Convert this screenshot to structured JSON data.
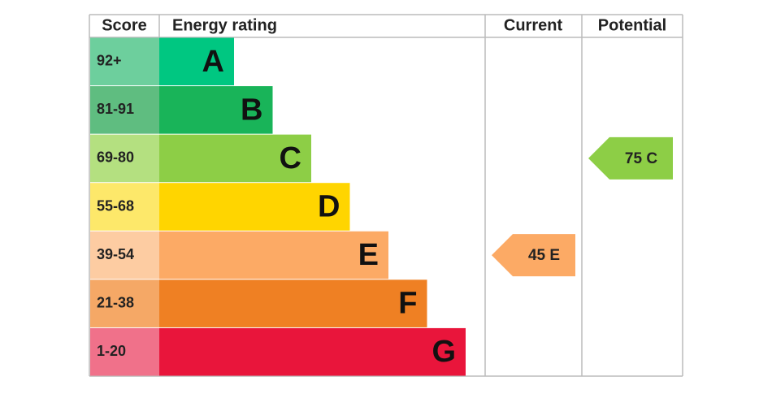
{
  "header": {
    "score": "Score",
    "rating": "Energy rating",
    "current": "Current",
    "potential": "Potential"
  },
  "rows": [
    {
      "score": "92+",
      "letter": "A",
      "color": "#00c781",
      "score_color": "#6dcf9d"
    },
    {
      "score": "81-91",
      "letter": "B",
      "color": "#19b459",
      "score_color": "#5fbd80"
    },
    {
      "score": "69-80",
      "letter": "C",
      "color": "#8dce46",
      "score_color": "#b4e080"
    },
    {
      "score": "55-68",
      "letter": "D",
      "color": "#ffd500",
      "score_color": "#fde86a"
    },
    {
      "score": "39-54",
      "letter": "E",
      "color": "#fcaa65",
      "score_color": "#fdcca2"
    },
    {
      "score": "21-38",
      "letter": "F",
      "color": "#ef8023",
      "score_color": "#f5a866"
    },
    {
      "score": "1-20",
      "letter": "G",
      "color": "#e9153b",
      "score_color": "#f0718a"
    }
  ],
  "current": {
    "label": "45 E"
  },
  "potential": {
    "label": "75 C"
  }
}
